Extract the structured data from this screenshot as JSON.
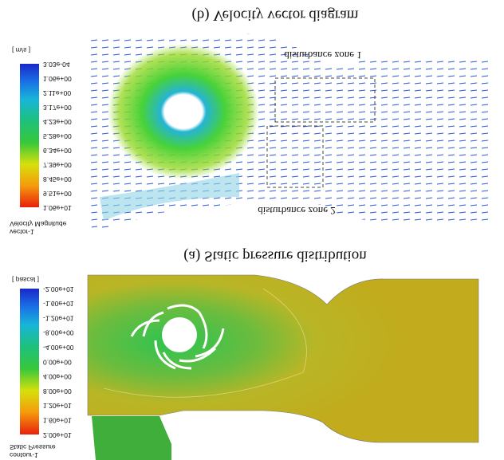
{
  "pressure_panel": {
    "legend": {
      "title": "contour-1",
      "quantity": "Static Pressure",
      "unit": "[ pascal ]",
      "ticks": [
        "2.00e+01",
        "1.60e+01",
        "1.20e+01",
        "8.00e+00",
        "4.00e+00",
        "0.00e+00",
        "-4.00e+00",
        "-8.00e+00",
        "-1.20e+01",
        "-1.60e+01",
        "-2.00e+01"
      ]
    },
    "caption": "(a) Static pressure distribution"
  },
  "velocity_panel": {
    "legend": {
      "title": "vector-1",
      "quantity": "Velocity Magnitude",
      "unit": "[ m/s ]",
      "ticks": [
        "1.06e+01",
        "9.51e+00",
        "8.45e+00",
        "7.39e+00",
        "6.34e+00",
        "5.28e+00",
        "4.23e+00",
        "3.17e+00",
        "2.11e+00",
        "1.06e+00",
        "3.03e-04"
      ]
    },
    "caption": "(b) Velocity vector diagram",
    "annotations": [
      "disturbance zone 1",
      "disturbance zone 2"
    ]
  }
}
